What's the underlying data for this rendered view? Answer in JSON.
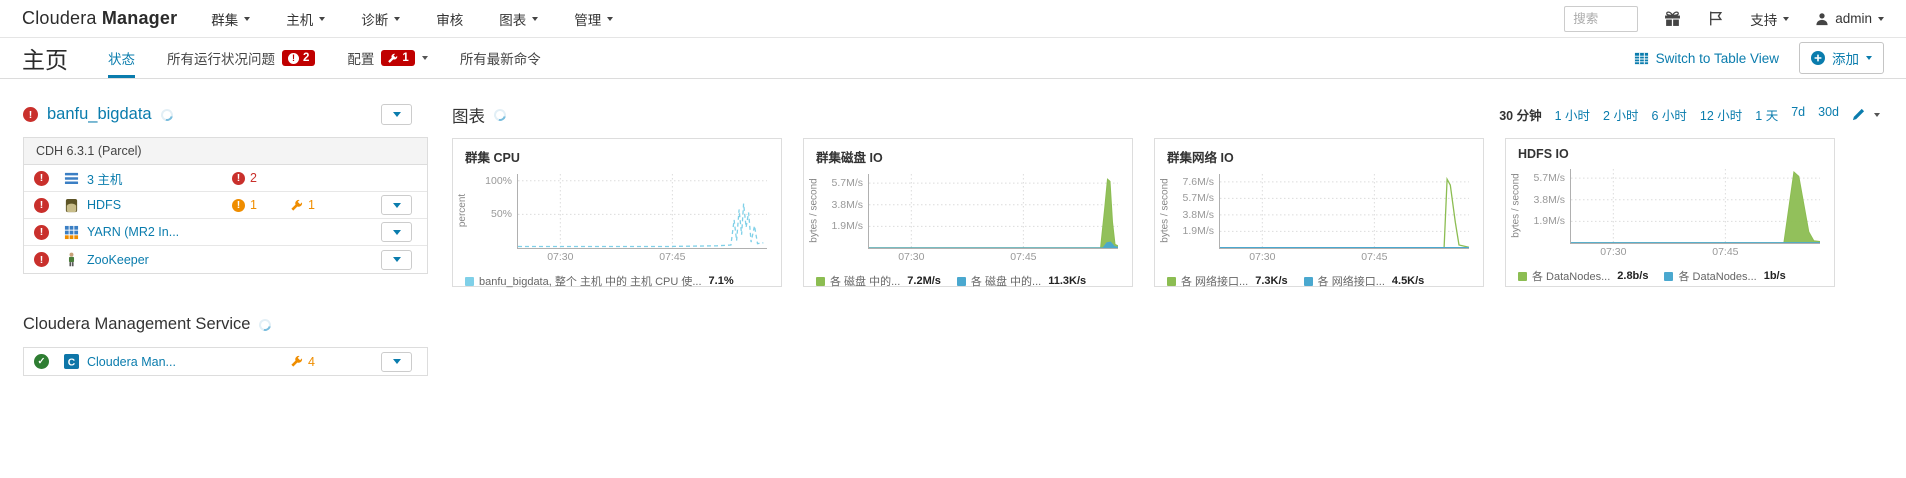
{
  "navbar": {
    "brand_part1": "Cloudera",
    "brand_part2": "Manager",
    "menus": [
      {
        "label": "群集"
      },
      {
        "label": "主机"
      },
      {
        "label": "诊断"
      },
      {
        "label": "审核"
      },
      {
        "label": "图表"
      },
      {
        "label": "管理"
      }
    ],
    "search_placeholder": "搜索",
    "support_label": "支持",
    "user_label": "admin"
  },
  "tabbar": {
    "page_title": "主页",
    "tab_status": "状态",
    "tab_health": "所有运行状况问题",
    "tab_health_badge": "2",
    "tab_config": "配置",
    "tab_config_badge": "1",
    "tab_commands": "所有最新命令",
    "switch_view_label": "Switch to Table View",
    "add_label": "添加"
  },
  "cluster": {
    "name": "banfu_bigdata",
    "version": "CDH 6.3.1 (Parcel)",
    "rows": [
      {
        "name": "3 主机",
        "health_error": "2"
      },
      {
        "name": "HDFS",
        "health_warn": "1",
        "config_issues": "1"
      },
      {
        "name": "YARN (MR2 In..."
      },
      {
        "name": "ZooKeeper"
      }
    ],
    "management_title": "Cloudera Management Service",
    "management_row": {
      "name": "Cloudera Man...",
      "config_issues": "4"
    }
  },
  "charts": {
    "heading": "图表",
    "time_ranges": {
      "selected": "30 分钟",
      "options": [
        "1 小时",
        "2 小时",
        "6 小时",
        "12 小时",
        "1 天",
        "7d",
        "30d"
      ]
    }
  },
  "chart_data": [
    {
      "type": "line",
      "title": "群集 CPU",
      "ylabel": "percent",
      "yticks": [
        {
          "label": "100%",
          "pos": 0.909
        },
        {
          "label": "50%",
          "pos": 0.455
        }
      ],
      "xticks": [
        {
          "label": "07:30",
          "pos": 0.17
        },
        {
          "label": "07:45",
          "pos": 0.62
        }
      ],
      "series": [
        {
          "name": "host cpu",
          "type": "line",
          "dashed": true,
          "color": "#7fd0e8",
          "points": [
            [
              0,
              0.02
            ],
            [
              0.6,
              0.02
            ],
            [
              0.8,
              0.03
            ],
            [
              0.855,
              0.04
            ],
            [
              0.868,
              0.38
            ],
            [
              0.878,
              0.1
            ],
            [
              0.888,
              0.52
            ],
            [
              0.898,
              0.18
            ],
            [
              0.906,
              0.6
            ],
            [
              0.916,
              0.28
            ],
            [
              0.926,
              0.48
            ],
            [
              0.936,
              0.08
            ],
            [
              0.95,
              0.3
            ],
            [
              0.962,
              0.06
            ],
            [
              0.985,
              0.07
            ]
          ]
        }
      ],
      "legend": [
        {
          "color": "#7fd0e8",
          "label": "banfu_bigdata, 整个 主机 中的 主机 CPU 使...",
          "value": "7.1%"
        }
      ]
    },
    {
      "type": "area",
      "title": "群集磁盘 IO",
      "ylabel": "bytes / second",
      "yticks": [
        {
          "label": "5.7M/s",
          "pos": 0.877
        },
        {
          "label": "3.8M/s",
          "pos": 0.585
        },
        {
          "label": "1.9M/s",
          "pos": 0.292
        }
      ],
      "xticks": [
        {
          "label": "07:30",
          "pos": 0.17
        },
        {
          "label": "07:45",
          "pos": 0.62
        }
      ],
      "series": [
        {
          "name": "disk write",
          "type": "area",
          "color": "#8cbd52",
          "points": [
            [
              0,
              0.004
            ],
            [
              0.93,
              0.004
            ],
            [
              0.947,
              0.55
            ],
            [
              0.958,
              0.93
            ],
            [
              0.968,
              0.9
            ],
            [
              0.978,
              0.35
            ],
            [
              0.988,
              0.05
            ],
            [
              1,
              0.03
            ]
          ]
        },
        {
          "name": "disk read",
          "type": "area",
          "color": "#4aa8cf",
          "points": [
            [
              0,
              0.002
            ],
            [
              0.94,
              0.002
            ],
            [
              0.955,
              0.07
            ],
            [
              0.97,
              0.08
            ],
            [
              0.985,
              0.02
            ],
            [
              1,
              0.01
            ]
          ]
        }
      ],
      "legend": [
        {
          "color": "#8cbd52",
          "label": "各 磁盘 中的...",
          "value": "7.2M/s"
        },
        {
          "color": "#4aa8cf",
          "label": "各 磁盘 中的...",
          "value": "11.3K/s"
        }
      ]
    },
    {
      "type": "line",
      "title": "群集网络 IO",
      "ylabel": "bytes / second",
      "yticks": [
        {
          "label": "7.6M/s",
          "pos": 0.894
        },
        {
          "label": "5.7M/s",
          "pos": 0.671
        },
        {
          "label": "3.8M/s",
          "pos": 0.447
        },
        {
          "label": "1.9M/s",
          "pos": 0.224
        }
      ],
      "xticks": [
        {
          "label": "07:30",
          "pos": 0.17
        },
        {
          "label": "07:45",
          "pos": 0.62
        }
      ],
      "series": [
        {
          "name": "network tx",
          "type": "line",
          "color": "#8cbd52",
          "points": [
            [
              0,
              0.005
            ],
            [
              0.9,
              0.005
            ],
            [
              0.912,
              0.93
            ],
            [
              0.925,
              0.85
            ],
            [
              0.945,
              0.35
            ],
            [
              0.96,
              0.04
            ],
            [
              1,
              0.01
            ]
          ]
        },
        {
          "name": "network rx",
          "type": "line",
          "color": "#4aa8cf",
          "points": [
            [
              0,
              0.004
            ],
            [
              1,
              0.004
            ]
          ]
        }
      ],
      "legend": [
        {
          "color": "#8cbd52",
          "label": "各 网络接口...",
          "value": "7.3K/s"
        },
        {
          "color": "#4aa8cf",
          "label": "各 网络接口...",
          "value": "4.5K/s"
        }
      ]
    },
    {
      "type": "area",
      "title": "HDFS IO",
      "ylabel": "bytes / second",
      "yticks": [
        {
          "label": "5.7M/s",
          "pos": 0.877
        },
        {
          "label": "3.8M/s",
          "pos": 0.585
        },
        {
          "label": "1.9M/s",
          "pos": 0.292
        }
      ],
      "xticks": [
        {
          "label": "07:30",
          "pos": 0.17
        },
        {
          "label": "07:45",
          "pos": 0.62
        }
      ],
      "series": [
        {
          "name": "datanode write",
          "type": "area",
          "color": "#8cbd52",
          "points": [
            [
              0,
              0.004
            ],
            [
              0.855,
              0.004
            ],
            [
              0.895,
              0.96
            ],
            [
              0.915,
              0.9
            ],
            [
              0.955,
              0.15
            ],
            [
              0.975,
              0.03
            ],
            [
              1,
              0.02
            ]
          ]
        },
        {
          "name": "datanode read",
          "type": "line",
          "color": "#4aa8cf",
          "points": [
            [
              0,
              0.003
            ],
            [
              1,
              0.003
            ]
          ]
        }
      ],
      "legend": [
        {
          "color": "#8cbd52",
          "label": "各 DataNodes...",
          "value": "2.8b/s"
        },
        {
          "color": "#4aa8cf",
          "label": "各 DataNodes...",
          "value": "1b/s"
        }
      ]
    }
  ]
}
